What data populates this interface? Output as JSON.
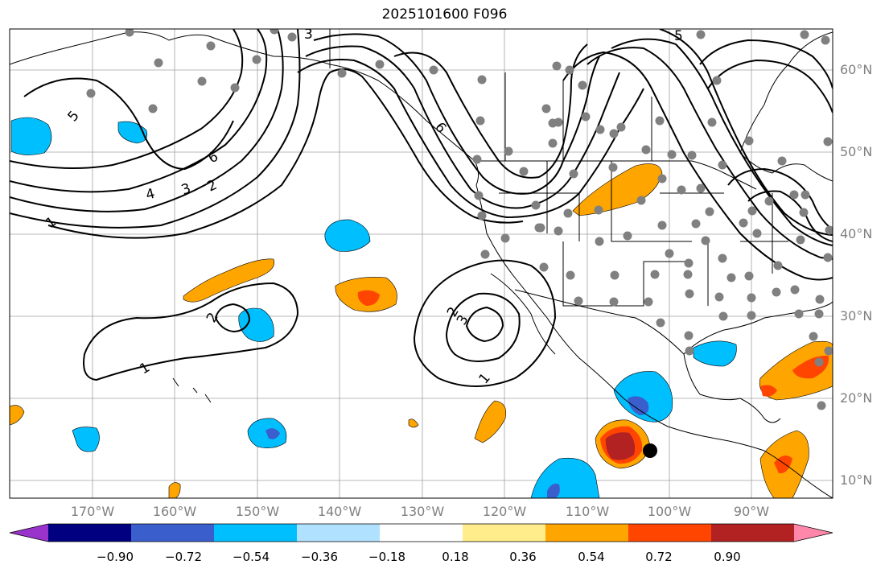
{
  "title": "2025101600 F096",
  "lat_ticks": [
    "60°N",
    "50°N",
    "40°N",
    "30°N",
    "20°N",
    "10°N"
  ],
  "lon_ticks": [
    "170°W",
    "160°W",
    "150°W",
    "140°W",
    "130°W",
    "120°W",
    "110°W",
    "100°W",
    "90°W"
  ],
  "colorbar": {
    "colors": [
      "#9933cc",
      "#000080",
      "#3a5fcd",
      "#00bfff",
      "#b0e2ff",
      "#ffffff",
      "#ffec8b",
      "#ffa500",
      "#ff4500",
      "#b22222",
      "#ff88aa"
    ],
    "labels": [
      "−0.90",
      "−0.72",
      "−0.54",
      "−0.36",
      "−0.18",
      "0.18",
      "0.36",
      "0.54",
      "0.72",
      "0.90"
    ]
  },
  "contour_labels": [
    {
      "text": "5"
    },
    {
      "text": "3"
    },
    {
      "text": "6"
    },
    {
      "text": "4"
    },
    {
      "text": "3"
    },
    {
      "text": "2"
    },
    {
      "text": "1"
    },
    {
      "text": "2"
    },
    {
      "text": "1"
    },
    {
      "text": "2"
    },
    {
      "text": "3"
    },
    {
      "text": "1"
    },
    {
      "text": "5"
    },
    {
      "text": "6"
    }
  ],
  "colors": {
    "land_line": "#000000",
    "grid": "#999999",
    "station": "#808080",
    "marker": "#000000"
  }
}
